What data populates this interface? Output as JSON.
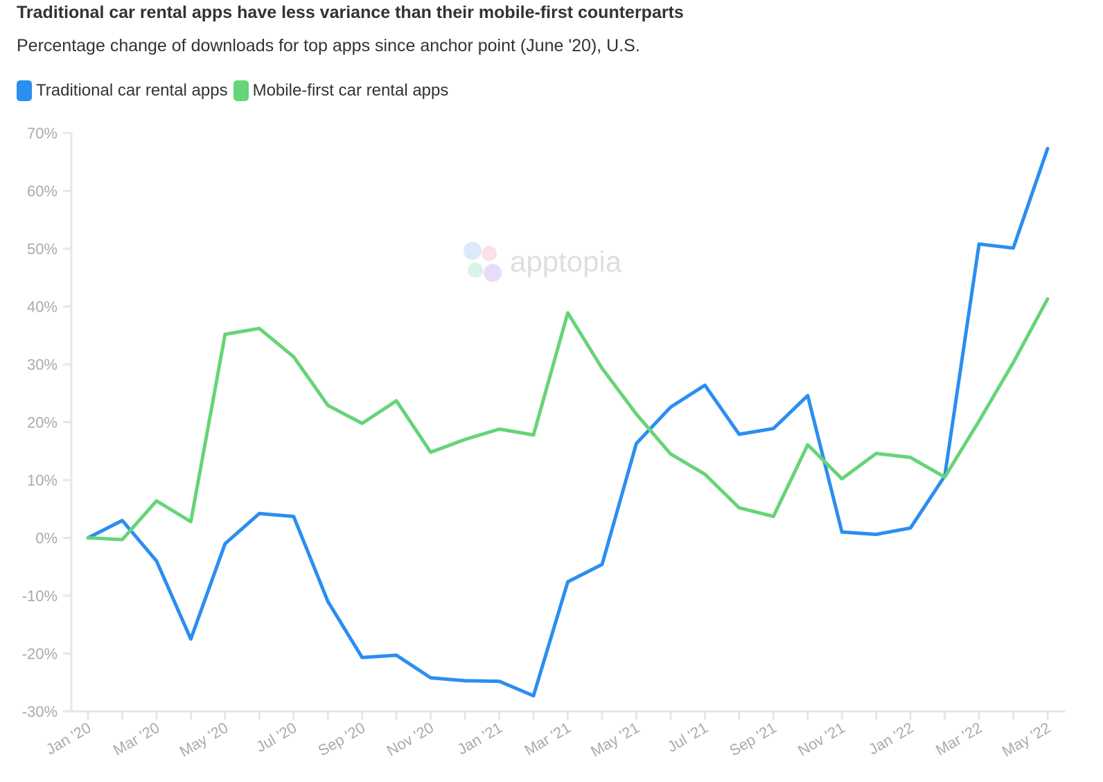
{
  "chart_data": {
    "type": "line",
    "title": "Traditional car rental apps have less variance than their mobile-first counterparts",
    "subtitle": "Percentage change of downloads for top apps since anchor point (June '20), U.S.",
    "xlabel": "",
    "ylabel": "",
    "ylim": [
      -30,
      70
    ],
    "yticks": [
      70,
      60,
      50,
      40,
      30,
      20,
      10,
      0,
      -10,
      -20,
      -30
    ],
    "ytick_labels": [
      "70%",
      "60%",
      "50%",
      "40%",
      "30%",
      "20%",
      "10%",
      "0%",
      "-10%",
      "-20%",
      "-30%"
    ],
    "x_tick_labels": [
      "Jan '20",
      "Mar '20",
      "May '20",
      "Jul '20",
      "Sep '20",
      "Nov '20",
      "Jan '21",
      "Mar '21",
      "May '21",
      "Jul '21",
      "Sep '21",
      "Nov '21",
      "Jan '22",
      "Mar '22",
      "May '22"
    ],
    "categories": [
      "Jan '20",
      "Feb '20",
      "Mar '20",
      "Apr '20",
      "May '20",
      "Jun '20",
      "Jul '20",
      "Aug '20",
      "Sep '20",
      "Oct '20",
      "Nov '20",
      "Dec '20",
      "Jan '21",
      "Feb '21",
      "Mar '21",
      "Apr '21",
      "May '21",
      "Jun '21",
      "Jul '21",
      "Aug '21",
      "Sep '21",
      "Oct '21",
      "Nov '21",
      "Dec '21",
      "Jan '22",
      "Feb '22",
      "Mar '22",
      "Apr '22",
      "May '22"
    ],
    "series": [
      {
        "name": "Traditional car rental apps",
        "color": "#2b8ef0",
        "values": [
          0,
          3,
          -4,
          -17.5,
          -1,
          4.2,
          3.7,
          -11,
          -20.7,
          -20.3,
          -24.2,
          -24.7,
          -24.8,
          -27.3,
          -7.6,
          -4.6,
          16.3,
          22.6,
          26.4,
          17.9,
          18.9,
          24.6,
          1,
          0.6,
          1.7,
          10.7,
          50.8,
          50.1,
          67.3
        ]
      },
      {
        "name": "Mobile-first car rental apps",
        "color": "#66d477",
        "values": [
          0,
          -0.3,
          6.4,
          2.8,
          35.2,
          36.2,
          31.3,
          22.9,
          19.8,
          23.7,
          14.8,
          17,
          18.8,
          17.8,
          38.9,
          29.3,
          21.4,
          14.5,
          11,
          5.2,
          3.7,
          16.1,
          10.2,
          14.6,
          13.9,
          10.5,
          20.2,
          30.3,
          41.3
        ]
      }
    ],
    "legend": [
      {
        "label": "Traditional car rental apps",
        "color": "#2b8ef0"
      },
      {
        "label": "Mobile-first car rental apps",
        "color": "#66d477"
      }
    ],
    "legend_position": "top-left",
    "grid": false,
    "watermark": "apptopia"
  }
}
